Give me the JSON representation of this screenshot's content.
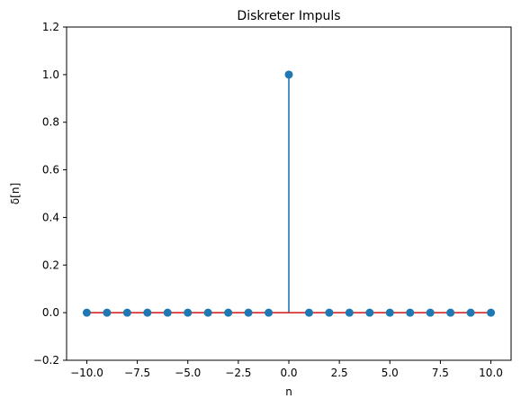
{
  "chart_data": {
    "type": "stem",
    "title": "Diskreter Impuls",
    "xlabel": "n",
    "ylabel": "δ[n]",
    "x": [
      -10,
      -9,
      -8,
      -7,
      -6,
      -5,
      -4,
      -3,
      -2,
      -1,
      0,
      1,
      2,
      3,
      4,
      5,
      6,
      7,
      8,
      9,
      10
    ],
    "y": [
      0,
      0,
      0,
      0,
      0,
      0,
      0,
      0,
      0,
      0,
      1,
      0,
      0,
      0,
      0,
      0,
      0,
      0,
      0,
      0,
      0
    ],
    "xlim": [
      -11,
      11
    ],
    "ylim": [
      -0.2,
      1.2
    ],
    "xticks": [
      -10.0,
      -7.5,
      -5.0,
      -2.5,
      0.0,
      2.5,
      5.0,
      7.5,
      10.0
    ],
    "xtick_labels": [
      "−10.0",
      "−7.5",
      "−5.0",
      "−2.5",
      "0.0",
      "2.5",
      "5.0",
      "7.5",
      "10.0"
    ],
    "yticks": [
      -0.2,
      0.0,
      0.2,
      0.4,
      0.6,
      0.8,
      1.0,
      1.2
    ],
    "ytick_labels": [
      "−0.2",
      "0.0",
      "0.2",
      "0.4",
      "0.6",
      "0.8",
      "1.0",
      "1.2"
    ],
    "grid": false,
    "colors": {
      "stem": "#1f77b4",
      "marker": "#1f77b4",
      "baseline": "#d62728"
    }
  }
}
